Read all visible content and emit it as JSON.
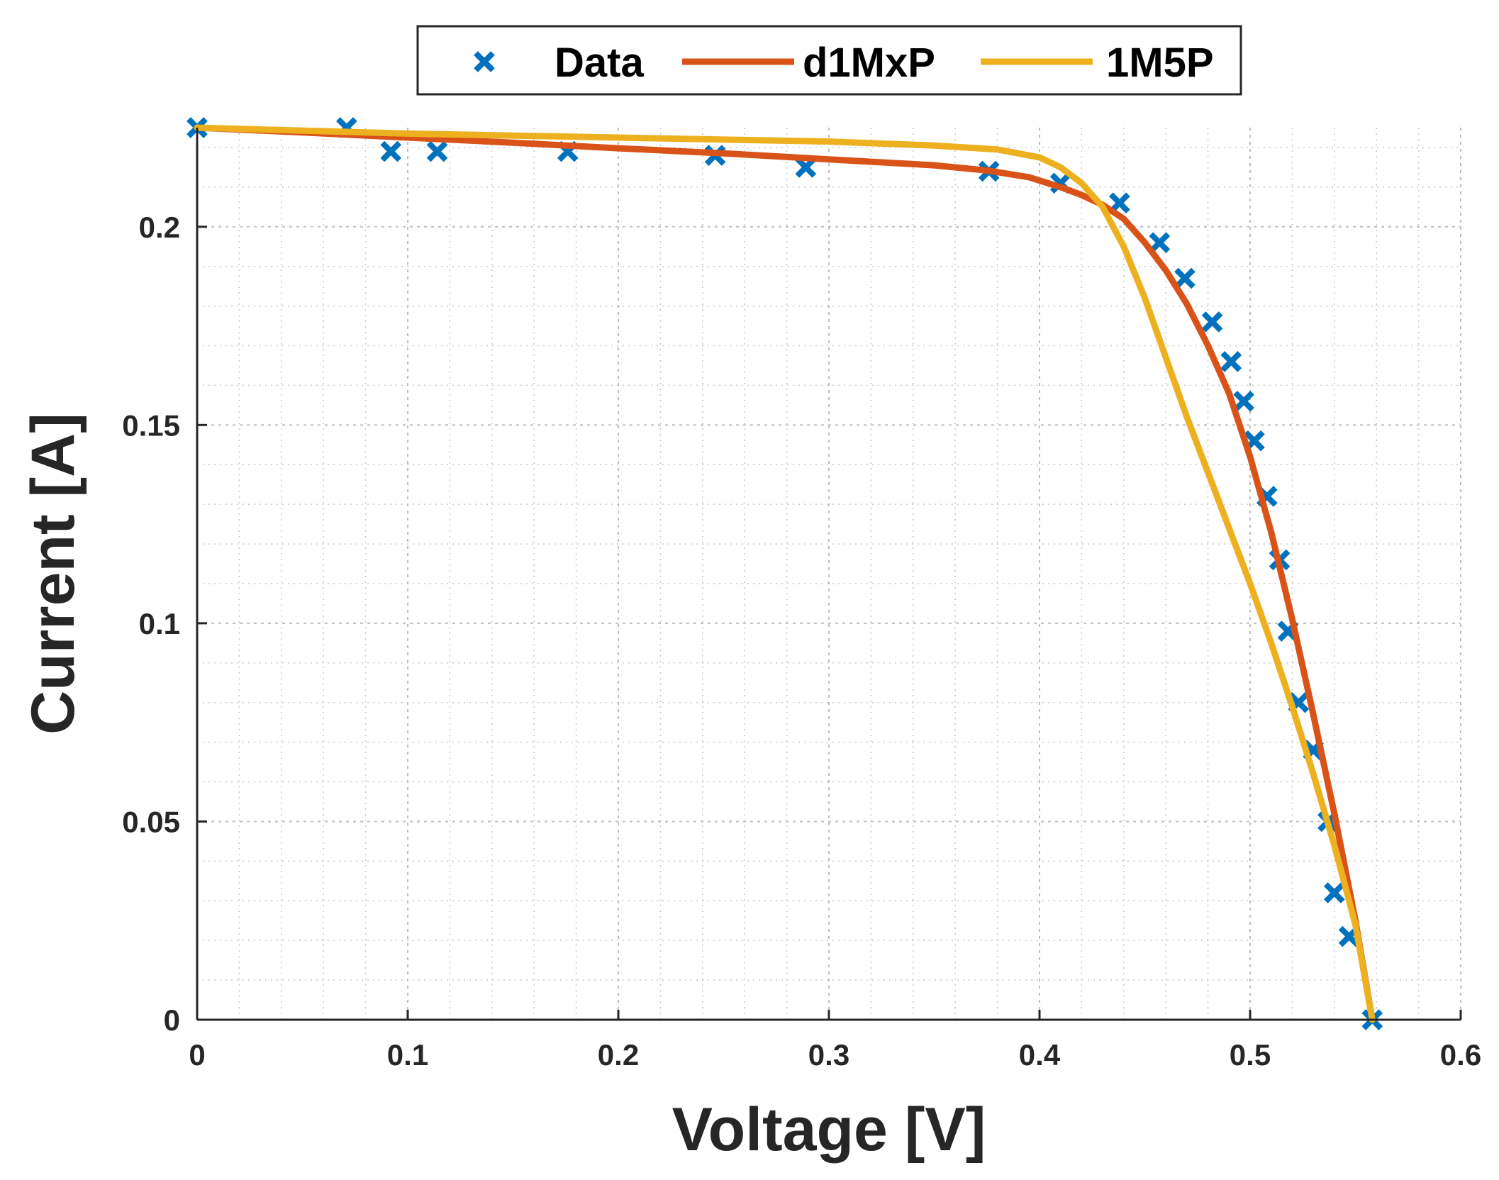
{
  "chart_data": {
    "type": "line",
    "title": "",
    "xlabel": "Voltage [V]",
    "ylabel": "Current [A]",
    "xlim": [
      0,
      0.6
    ],
    "ylim": [
      0,
      0.225
    ],
    "grid": true,
    "minor_grid": true,
    "legend_position": "top",
    "xticks": [
      0,
      0.1,
      0.2,
      0.3,
      0.4,
      0.5,
      0.6
    ],
    "xtick_labels": [
      "0",
      "0.1",
      "0.2",
      "0.3",
      "0.4",
      "0.5",
      "0.6"
    ],
    "yticks": [
      0,
      0.05,
      0.1,
      0.15,
      0.2
    ],
    "ytick_labels": [
      "0",
      "0.05",
      "0.1",
      "0.15",
      "0.2"
    ],
    "series": [
      {
        "name": "Data",
        "kind": "scatter",
        "marker": "x",
        "color": "#0072BD",
        "x": [
          0.0,
          0.071,
          0.092,
          0.114,
          0.176,
          0.246,
          0.289,
          0.376,
          0.41,
          0.438,
          0.457,
          0.469,
          0.482,
          0.491,
          0.497,
          0.502,
          0.508,
          0.514,
          0.518,
          0.523,
          0.53,
          0.537,
          0.54,
          0.547,
          0.558
        ],
        "y": [
          0.225,
          0.225,
          0.219,
          0.219,
          0.219,
          0.218,
          0.215,
          0.214,
          0.211,
          0.206,
          0.196,
          0.187,
          0.176,
          0.166,
          0.156,
          0.146,
          0.132,
          0.116,
          0.098,
          0.08,
          0.068,
          0.05,
          0.032,
          0.021,
          0.0
        ]
      },
      {
        "name": "d1MxP",
        "kind": "line",
        "color": "#D95319",
        "x": [
          0.0,
          0.05,
          0.1,
          0.15,
          0.2,
          0.25,
          0.3,
          0.35,
          0.375,
          0.395,
          0.41,
          0.42,
          0.43,
          0.44,
          0.45,
          0.46,
          0.47,
          0.48,
          0.49,
          0.5,
          0.51,
          0.52,
          0.53,
          0.54,
          0.55,
          0.558
        ],
        "y": [
          0.225,
          0.2238,
          0.2225,
          0.2212,
          0.2198,
          0.2185,
          0.217,
          0.2155,
          0.2142,
          0.2125,
          0.21,
          0.208,
          0.2055,
          0.202,
          0.196,
          0.189,
          0.1805,
          0.17,
          0.158,
          0.142,
          0.123,
          0.101,
          0.077,
          0.052,
          0.025,
          0.0
        ]
      },
      {
        "name": "1M5P",
        "kind": "line",
        "color": "#EDB120",
        "x": [
          0.0,
          0.1,
          0.2,
          0.3,
          0.35,
          0.38,
          0.4,
          0.41,
          0.42,
          0.43,
          0.44,
          0.45,
          0.46,
          0.47,
          0.48,
          0.49,
          0.5,
          0.51,
          0.52,
          0.53,
          0.54,
          0.55,
          0.558
        ],
        "y": [
          0.225,
          0.2235,
          0.2225,
          0.2215,
          0.2205,
          0.2195,
          0.2175,
          0.215,
          0.211,
          0.205,
          0.195,
          0.182,
          0.167,
          0.152,
          0.138,
          0.124,
          0.11,
          0.095,
          0.079,
          0.062,
          0.044,
          0.024,
          0.0
        ]
      }
    ]
  }
}
